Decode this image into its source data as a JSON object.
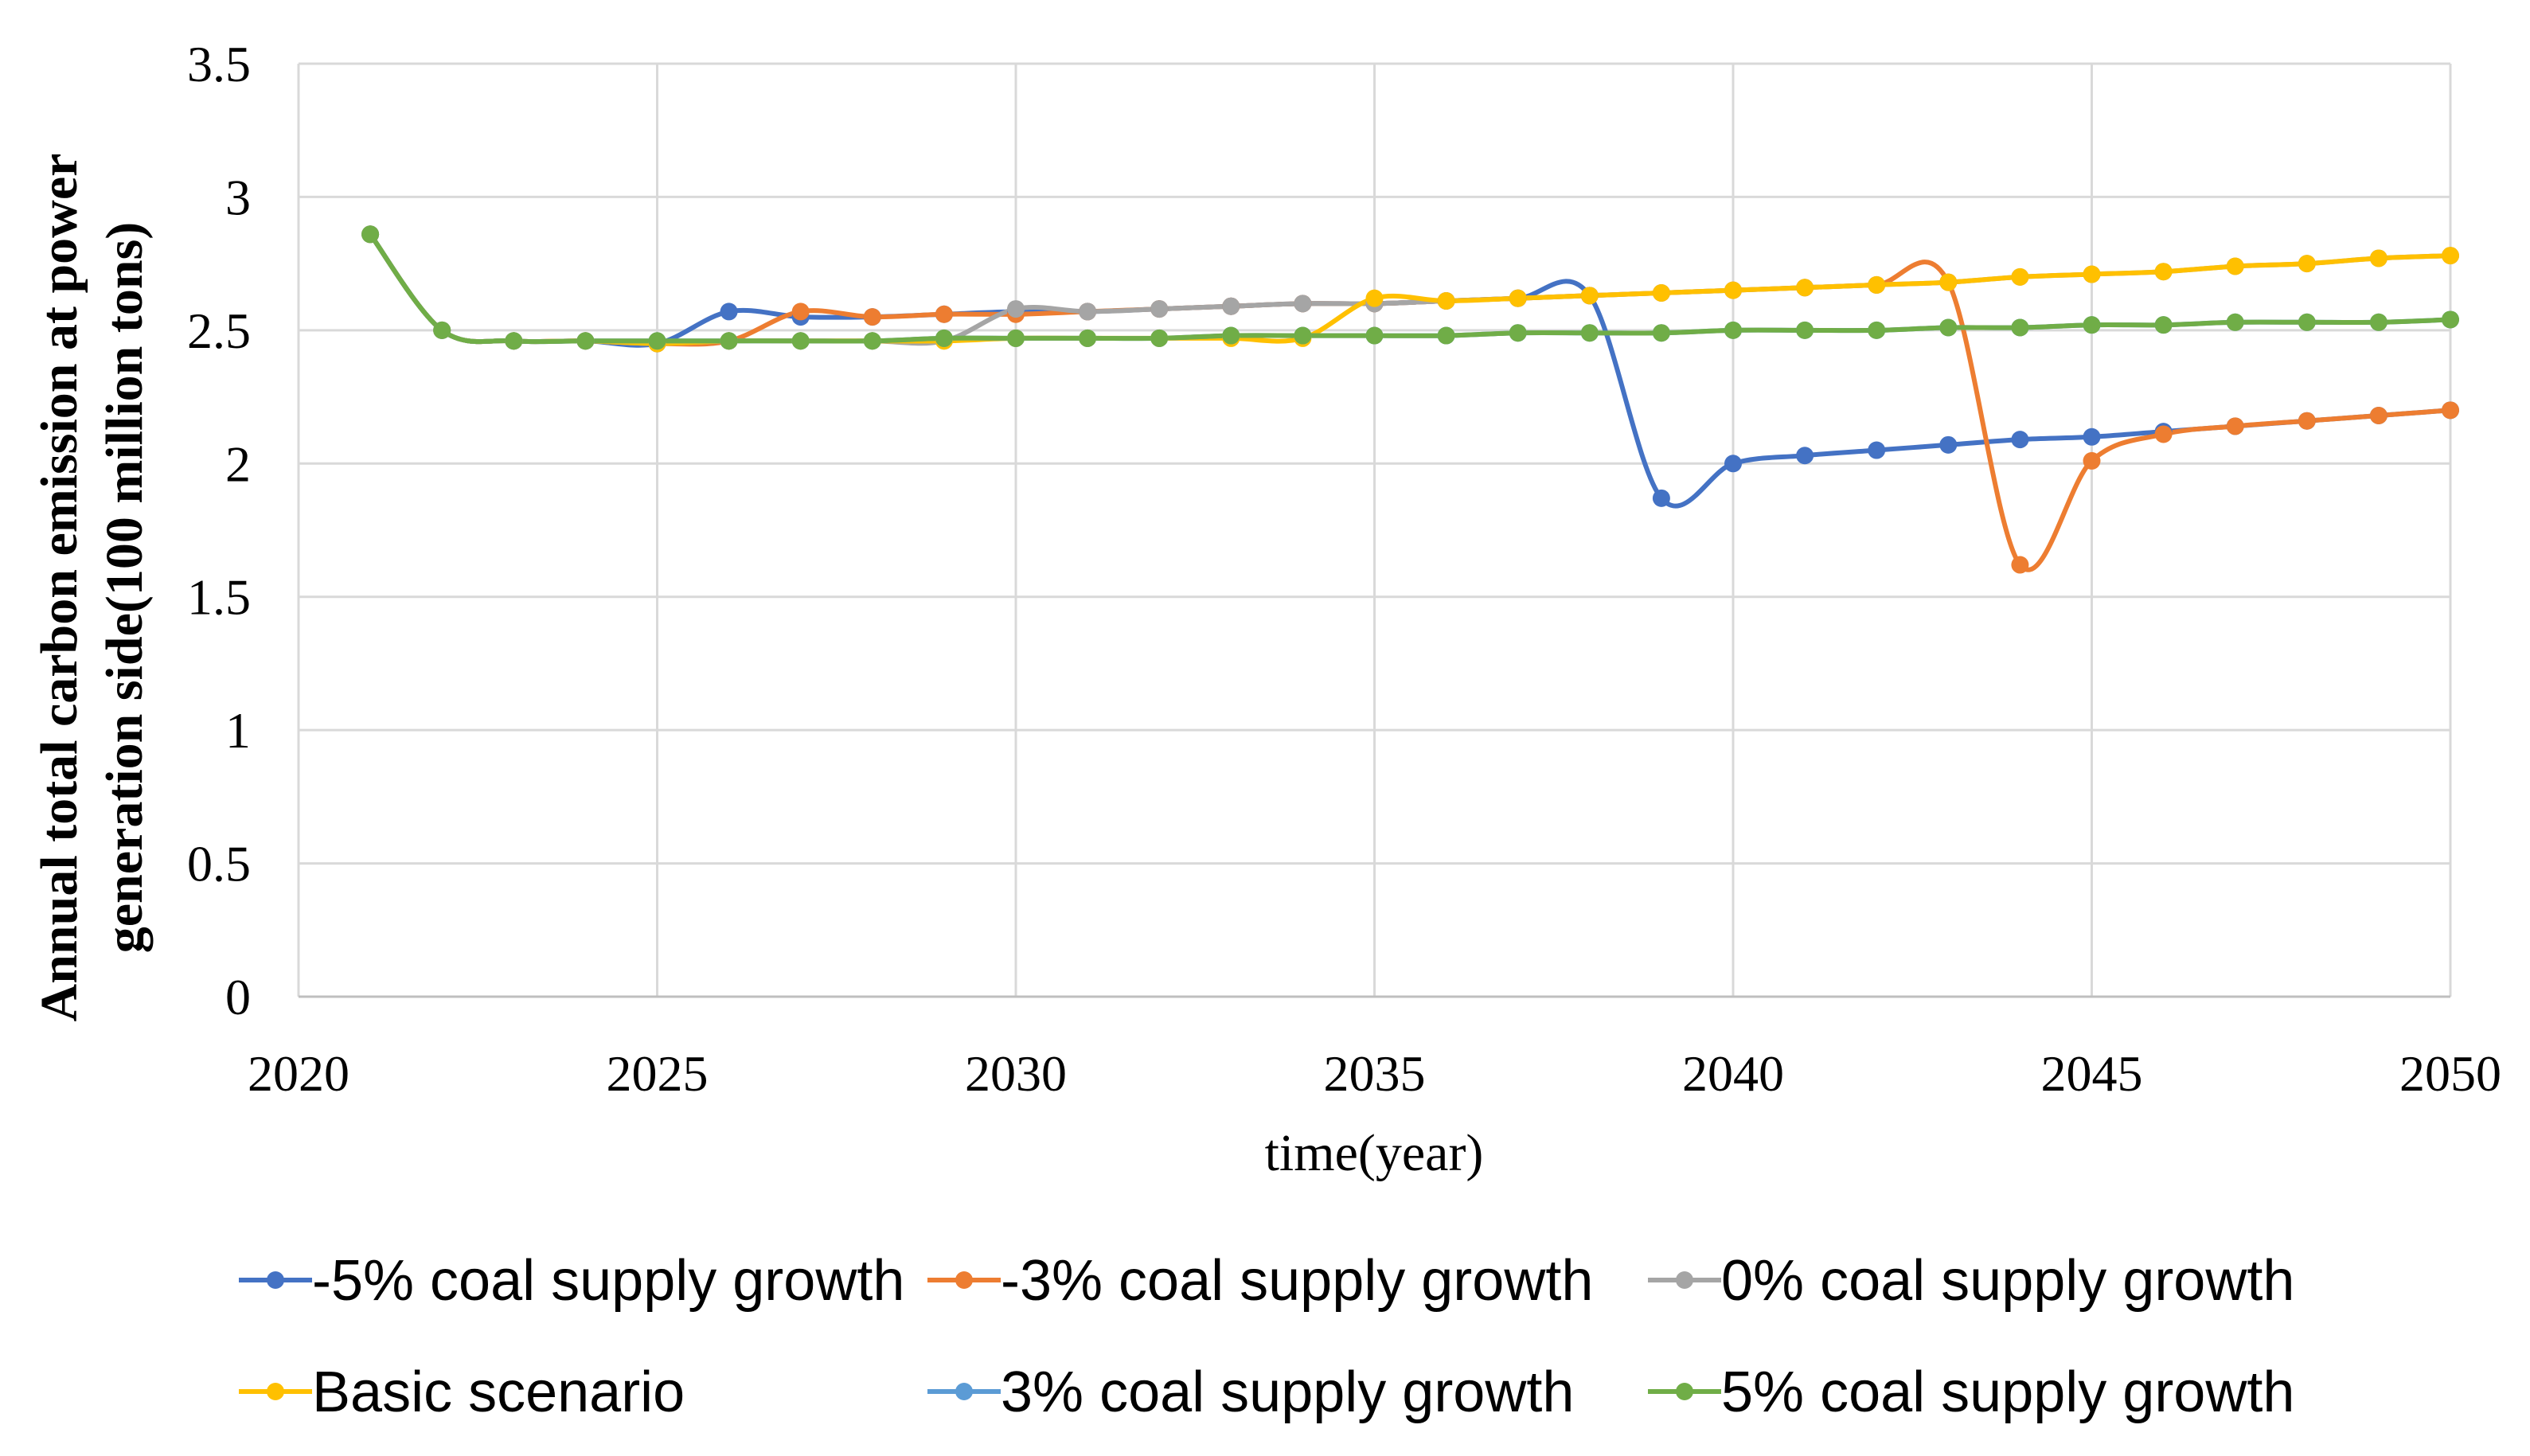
{
  "chart_data": {
    "type": "line",
    "title": "",
    "xlabel": "time(year)",
    "ylabel_lines": [
      "Annual total carbon emission at power",
      "generation side(100 million tons)"
    ],
    "xlim": [
      2020,
      2050
    ],
    "ylim": [
      0,
      3.5
    ],
    "xticks": [
      "2020",
      "2025",
      "2030",
      "2035",
      "2040",
      "2045",
      "2050"
    ],
    "yticks": [
      "0",
      "0.5",
      "1",
      "1.5",
      "2",
      "2.5",
      "3",
      "3.5"
    ],
    "grid": true,
    "legend_position": "bottom",
    "x": [
      2021,
      2022,
      2023,
      2024,
      2025,
      2026,
      2027,
      2028,
      2029,
      2030,
      2031,
      2032,
      2033,
      2034,
      2035,
      2036,
      2037,
      2038,
      2039,
      2040,
      2041,
      2042,
      2043,
      2044,
      2045,
      2046,
      2047,
      2048,
      2049,
      2050
    ],
    "series": [
      {
        "name": "-5% coal supply growth",
        "color": "#4472C4",
        "values": [
          2.86,
          2.5,
          2.46,
          2.46,
          2.45,
          2.57,
          2.55,
          2.55,
          2.56,
          2.57,
          2.57,
          2.58,
          2.59,
          2.6,
          2.6,
          2.61,
          2.62,
          2.63,
          1.87,
          2.0,
          2.03,
          2.05,
          2.07,
          2.09,
          2.1,
          2.12,
          2.14,
          2.16,
          2.18,
          2.2
        ]
      },
      {
        "name": "-3% coal supply growth",
        "color": "#ED7D31",
        "values": [
          2.86,
          2.5,
          2.46,
          2.46,
          2.45,
          2.46,
          2.57,
          2.55,
          2.56,
          2.56,
          2.57,
          2.58,
          2.59,
          2.6,
          2.6,
          2.61,
          2.62,
          2.63,
          2.64,
          2.65,
          2.66,
          2.67,
          2.68,
          1.62,
          2.01,
          2.11,
          2.14,
          2.16,
          2.18,
          2.2
        ]
      },
      {
        "name": "0% coal supply growth",
        "color": "#A5A5A5",
        "values": [
          2.86,
          2.5,
          2.46,
          2.46,
          2.45,
          2.46,
          2.46,
          2.46,
          2.46,
          2.58,
          2.57,
          2.58,
          2.59,
          2.6,
          2.6,
          2.61,
          2.62,
          2.63,
          2.64,
          2.65,
          2.66,
          2.67,
          2.68,
          2.7,
          2.71,
          2.72,
          2.74,
          2.75,
          2.77,
          2.78
        ]
      },
      {
        "name": "Basic scenario",
        "color": "#FFC000",
        "values": [
          2.86,
          2.5,
          2.46,
          2.46,
          2.45,
          2.46,
          2.46,
          2.46,
          2.46,
          2.47,
          2.47,
          2.47,
          2.47,
          2.47,
          2.62,
          2.61,
          2.62,
          2.63,
          2.64,
          2.65,
          2.66,
          2.67,
          2.68,
          2.7,
          2.71,
          2.72,
          2.74,
          2.75,
          2.77,
          2.78
        ]
      },
      {
        "name": "3% coal supply growth",
        "color": "#5B9BD5",
        "values": [
          2.86,
          2.5,
          2.46,
          2.46,
          2.46,
          2.46,
          2.46,
          2.46,
          2.47,
          2.47,
          2.47,
          2.47,
          2.48,
          2.48,
          2.48,
          2.48,
          2.49,
          2.49,
          2.49,
          2.5,
          2.5,
          2.5,
          2.51,
          2.51,
          2.52,
          2.52,
          2.53,
          2.53,
          2.53,
          2.54
        ]
      },
      {
        "name": "5% coal supply growth",
        "color": "#70AD47",
        "values": [
          2.86,
          2.5,
          2.46,
          2.46,
          2.46,
          2.46,
          2.46,
          2.46,
          2.47,
          2.47,
          2.47,
          2.47,
          2.48,
          2.48,
          2.48,
          2.48,
          2.49,
          2.49,
          2.49,
          2.5,
          2.5,
          2.5,
          2.51,
          2.51,
          2.52,
          2.52,
          2.53,
          2.53,
          2.53,
          2.54
        ]
      }
    ]
  }
}
